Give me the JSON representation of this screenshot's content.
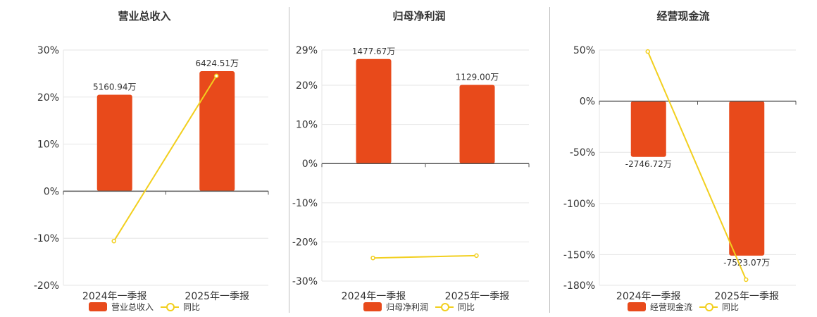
{
  "colors": {
    "bar": "#e84a1b",
    "line": "#f2cf1e",
    "grid": "#e6e6e6",
    "axis": "#555555",
    "text": "#333333",
    "divider": "#bdbdbd"
  },
  "chart_data": [
    {
      "type": "bar",
      "title": "营业总收入",
      "categories": [
        "2024年一季报",
        "2025年一季报"
      ],
      "series": [
        {
          "name": "营业总收入",
          "type": "bar",
          "values": [
            20.5,
            25.5
          ],
          "labels": [
            "5160.94万",
            "6424.51万"
          ]
        },
        {
          "name": "同比",
          "type": "line",
          "values": [
            -10.6,
            24.5
          ]
        }
      ],
      "yticks": [
        30,
        20,
        10,
        0,
        -10,
        -20
      ],
      "ytick_labels": [
        "30%",
        "20%",
        "10%",
        "0%",
        "-10%",
        "-20%"
      ],
      "ylim": [
        -20,
        30
      ],
      "grid": true,
      "legend": "bottom"
    },
    {
      "type": "bar",
      "title": "归母净利润",
      "categories": [
        "2024年一季报",
        "2025年一季报"
      ],
      "series": [
        {
          "name": "归母净利润",
          "type": "bar",
          "values": [
            26.7,
            20.1
          ],
          "labels": [
            "1477.67万",
            "1129.00万"
          ]
        },
        {
          "name": "同比",
          "type": "line",
          "values": [
            -24.1,
            -23.5
          ]
        }
      ],
      "yticks": [
        29,
        20,
        10,
        0,
        -10,
        -20,
        -30
      ],
      "ytick_labels": [
        "29%",
        "20%",
        "10%",
        "0%",
        "-10%",
        "-20%",
        "-30%"
      ],
      "ylim": [
        -30,
        29
      ],
      "grid": true,
      "legend": "bottom"
    },
    {
      "type": "bar",
      "title": "经营现金流",
      "categories": [
        "2024年一季报",
        "2025年一季报"
      ],
      "series": [
        {
          "name": "经营现金流",
          "type": "bar",
          "values": [
            -54.5,
            -151.0
          ],
          "labels": [
            "-2746.72万",
            "-7523.07万"
          ]
        },
        {
          "name": "同比",
          "type": "line",
          "values": [
            48.5,
            -174.5
          ]
        }
      ],
      "yticks": [
        50,
        0,
        -50,
        -100,
        -150,
        -180
      ],
      "ytick_labels": [
        "50%",
        "0%",
        "-50%",
        "-100%",
        "-150%",
        "-180%"
      ],
      "ylim": [
        -180,
        50
      ],
      "grid": true,
      "legend": "bottom"
    }
  ]
}
